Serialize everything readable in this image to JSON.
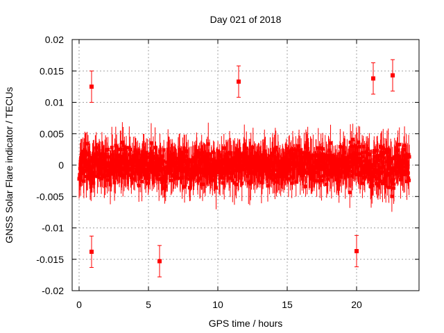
{
  "chart_data": {
    "type": "scatter",
    "title": "Day 021 of 2018",
    "xlabel": "GPS time / hours",
    "ylabel": "GNSS Solar Flare indicator / TECUs",
    "xlim": [
      -0.5,
      24.5
    ],
    "ylim": [
      -0.02,
      0.02
    ],
    "x_ticks": [
      0,
      5,
      10,
      15,
      20
    ],
    "y_ticks": [
      -0.02,
      -0.015,
      -0.01,
      -0.005,
      0,
      0.005,
      0.01,
      0.015,
      0.02
    ],
    "x_tick_labels": [
      "0",
      "5",
      "10",
      "15",
      "20"
    ],
    "y_tick_labels": [
      "-0.02",
      "-0.015",
      "-0.01",
      "-0.005",
      "0",
      "0.005",
      "0.01",
      "0.015",
      "0.02"
    ],
    "grid": true,
    "series": [
      {
        "name": "solar flare indicator",
        "color": "#ff0000",
        "marker": "square",
        "error_bars": true,
        "x_start": 0.0,
        "x_end": 23.8,
        "typical_spread": 0.005,
        "quiet_spread": 0.0045,
        "active_interval": [
          19.5,
          23.8
        ],
        "active_spread": 0.0065,
        "error_half_width": 0.0025,
        "notable_points": [
          {
            "x": 0.9,
            "y": 0.0125
          },
          {
            "x": 0.9,
            "y": -0.0138
          },
          {
            "x": 5.8,
            "y": -0.0153
          },
          {
            "x": 11.5,
            "y": 0.0133
          },
          {
            "x": 22.6,
            "y": 0.0143
          },
          {
            "x": 21.2,
            "y": 0.0138
          },
          {
            "x": 20.0,
            "y": -0.0137
          }
        ]
      }
    ]
  }
}
